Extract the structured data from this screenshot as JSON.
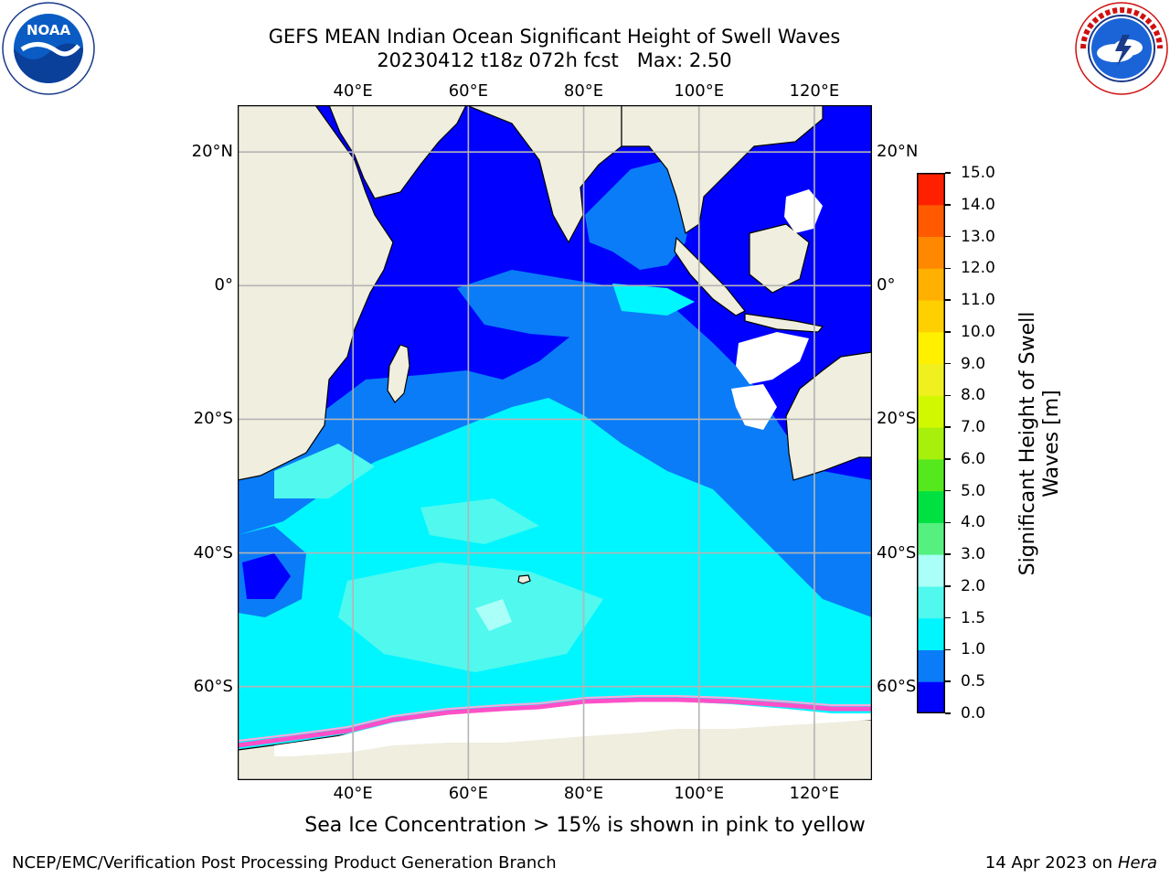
{
  "title": {
    "line1": "GEFS MEAN Indian Ocean Significant Height of Swell Waves",
    "line2": "20230412 t18z 072h fcst   Max: 2.50"
  },
  "logos": {
    "noaa": {
      "text": "NOAA",
      "ring_text": "NATIONAL OCEANIC AND ATMOSPHERIC ADMINISTRATION · U.S. DEPARTMENT OF COMMERCE"
    },
    "nws": {
      "ring_text": "NATIONAL WEATHER SERVICE"
    }
  },
  "map": {
    "lon_range": [
      20,
      130
    ],
    "lat_range": [
      -74,
      27
    ],
    "lon_ticks": [
      40,
      60,
      80,
      100,
      120
    ],
    "lon_labels": [
      "40°E",
      "60°E",
      "80°E",
      "100°E",
      "120°E"
    ],
    "lat_ticks": [
      20,
      0,
      -20,
      -40,
      -60
    ],
    "lat_labels": [
      "20°N",
      "0°",
      "20°S",
      "40°S",
      "60°S"
    ],
    "grid": true,
    "land_color": "#efeedf",
    "no_data_color": "#ffffff"
  },
  "colorbar": {
    "levels": [
      0.0,
      0.5,
      1.0,
      1.5,
      2.0,
      3.0,
      4.0,
      5.0,
      6.0,
      7.0,
      8.0,
      9.0,
      10.0,
      11.0,
      12.0,
      13.0,
      14.0,
      15.0
    ],
    "tick_labels": [
      "0.0",
      "0.5",
      "1.0",
      "1.5",
      "2.0",
      "3.0",
      "4.0",
      "5.0",
      "6.0",
      "7.0",
      "8.0",
      "9.0",
      "10.0",
      "11.0",
      "12.0",
      "13.0",
      "14.0",
      "15.0"
    ],
    "colors": [
      "#0000ff",
      "#0a7cf8",
      "#00f6ff",
      "#50f8ee",
      "#aafff8",
      "#55f080",
      "#00e040",
      "#55e81c",
      "#a6f00c",
      "#d2f800",
      "#f0f020",
      "#fff000",
      "#ffd000",
      "#ffb000",
      "#ff8800",
      "#ff5a00",
      "#ff2000"
    ],
    "label_line1": "Significant Height of Swell",
    "label_line2": "Waves [m]"
  },
  "footer": {
    "note": "Sea Ice Concentration > 15% is shown in pink to yellow",
    "left": "NCEP/EMC/Verification Post Processing Product Generation Branch",
    "right_prefix": "14 Apr 2023 on ",
    "right_host": "Hera"
  }
}
